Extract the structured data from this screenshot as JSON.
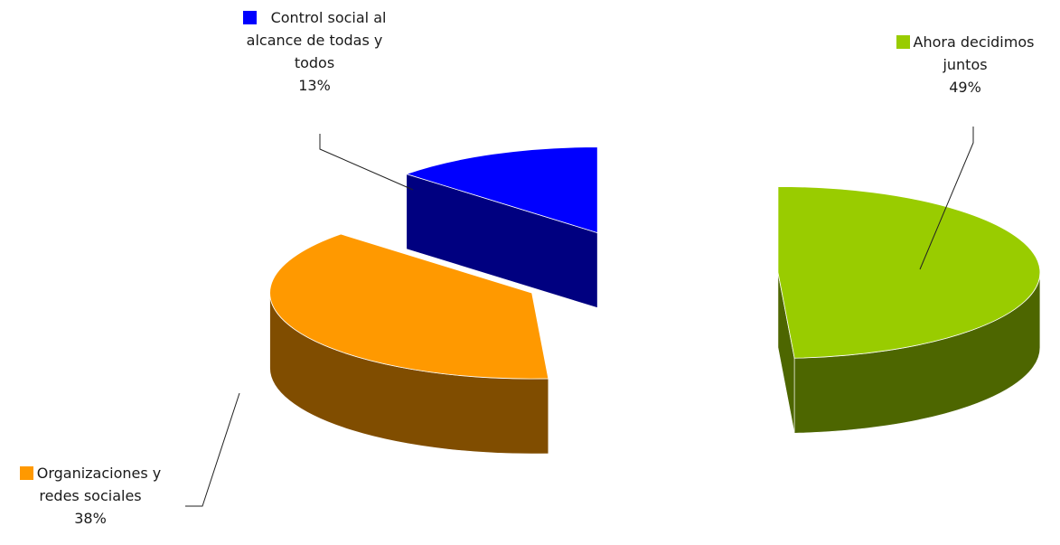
{
  "chart_data": {
    "type": "pie",
    "style": "3d-exploded",
    "title": "",
    "unit": "%",
    "slices": [
      {
        "label": "Ahora decidimos juntos",
        "label_lines": [
          "Ahora decidimos",
          "juntos"
        ],
        "value": 49,
        "value_text": "49%",
        "color": "#99cc00",
        "side_color": "#4d6600"
      },
      {
        "label": "Organizaciones y redes sociales",
        "label_lines": [
          "Organizaciones y",
          "redes sociales"
        ],
        "value": 38,
        "value_text": "38%",
        "color": "#ff9900",
        "side_color": "#804d00"
      },
      {
        "label": "Control social al alcance de todas y todos",
        "label_lines": [
          "Control social al",
          "alcance de todas y",
          "todos"
        ],
        "value": 13,
        "value_text": "13%",
        "color": "#0000ff",
        "side_color": "#000080"
      }
    ],
    "legend": "none",
    "grid": false
  }
}
